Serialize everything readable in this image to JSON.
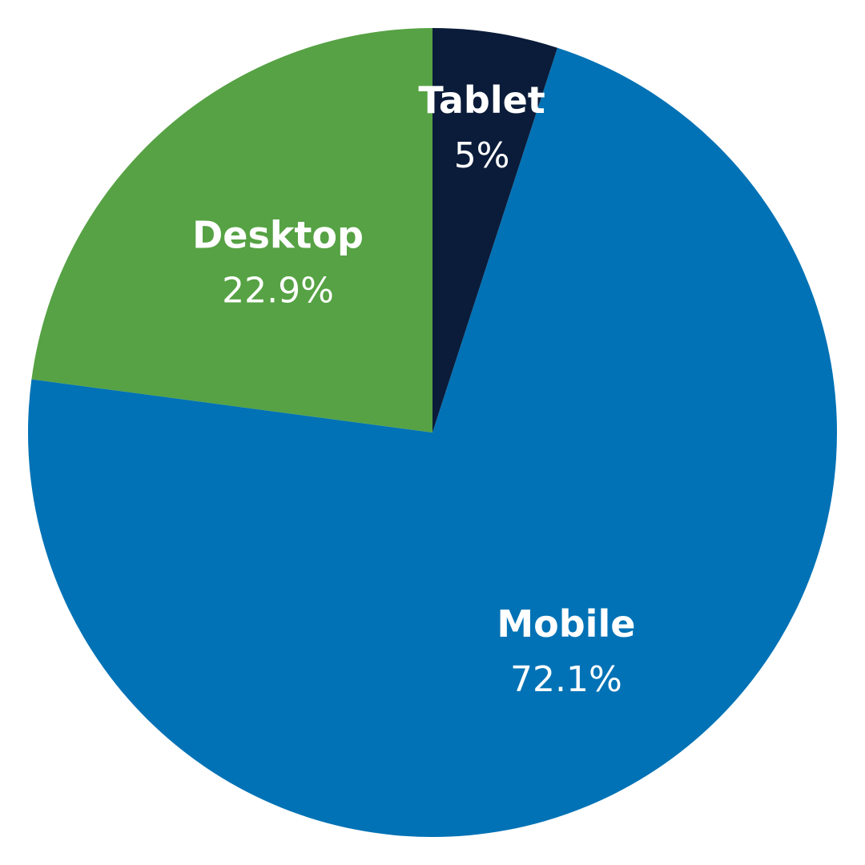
{
  "chart_data": {
    "type": "pie",
    "start_angle": "12 o'clock",
    "direction": "clockwise",
    "slices": [
      {
        "label": "Tablet",
        "value": 5,
        "value_label": "5%",
        "color": "#0b1c3a"
      },
      {
        "label": "Mobile",
        "value": 72.1,
        "value_label": "72.1%",
        "color": "#0072b5"
      },
      {
        "label": "Desktop",
        "value": 22.9,
        "value_label": "22.9%",
        "color": "#56a244"
      }
    ]
  }
}
